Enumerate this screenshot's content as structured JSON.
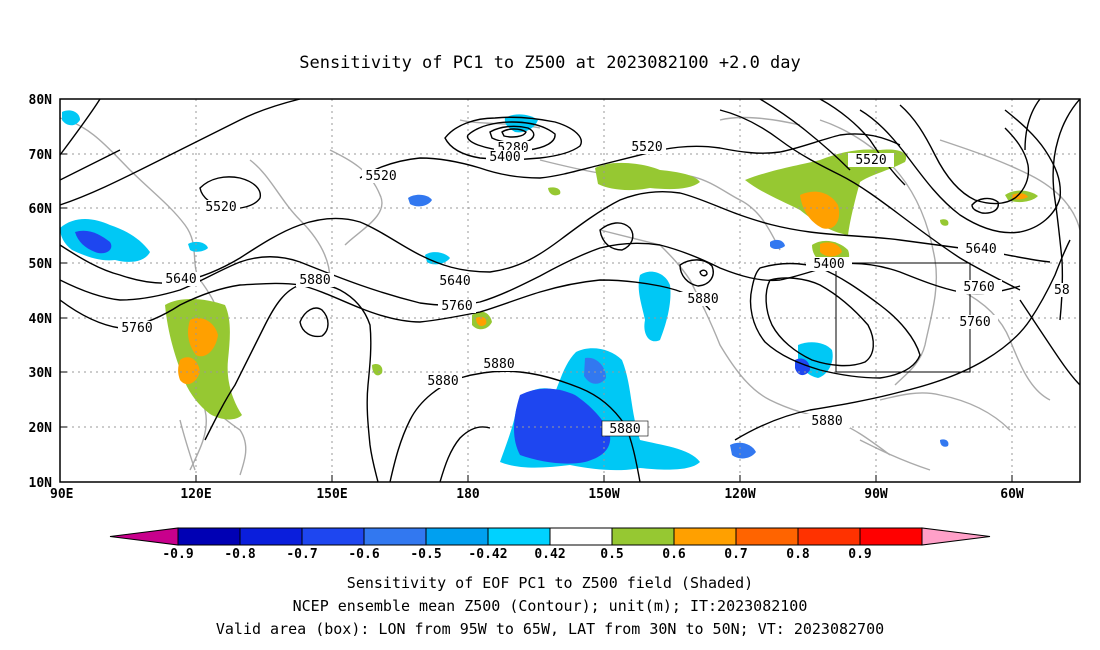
{
  "title": "Sensitivity of PC1 to Z500 at 2023082100 +2.0 day",
  "map": {
    "lat_ticks": [
      "80N",
      "70N",
      "60N",
      "50N",
      "40N",
      "30N",
      "20N",
      "10N"
    ],
    "lon_ticks": [
      "90E",
      "120E",
      "150E",
      "180",
      "150W",
      "120W",
      "90W",
      "60W"
    ],
    "grid": "dotted every 10 degrees",
    "box": {
      "lon_range": [
        "95W",
        "65W"
      ],
      "lat_range": [
        "30N",
        "50N"
      ]
    }
  },
  "contour_labels": [
    "5280",
    "5400",
    "5520",
    "5520",
    "5520",
    "5640",
    "5640",
    "5760",
    "5760",
    "5880",
    "5880",
    "5880",
    "5880",
    "5880",
    "5400",
    "5520",
    "5640",
    "5760",
    "5880",
    "5760",
    "58"
  ],
  "colorbar": {
    "labels": [
      "-0.9",
      "-0.8",
      "-0.7",
      "-0.6",
      "-0.5",
      "-0.42",
      "0.42",
      "0.5",
      "0.6",
      "0.7",
      "0.8",
      "0.9"
    ],
    "colors": [
      "#c8008c",
      "#0000b4",
      "#0a1edc",
      "#1e46f0",
      "#3278f0",
      "#00a0f0",
      "#00d2ff",
      "#ffffff",
      "#96c832",
      "#ffa000",
      "#ff6400",
      "#ff3200",
      "#ff0000",
      "#ffa0c8"
    ]
  },
  "shading_colors": {
    "neg_dark": "#1e46f0",
    "neg_mid": "#3278f0",
    "neg_light": "#00c8f5",
    "pos_green": "#96c832",
    "pos_orange": "#ffa000",
    "pos_dark_orange": "#ff6e00"
  },
  "caption": [
    "Sensitivity of EOF PC1 to Z500 field (Shaded)",
    "NCEP ensemble mean Z500 (Contour); unit(m); IT:2023082100",
    "Valid area (box): LON from 95W to 65W, LAT from 30N to 50N; VT: 2023082700"
  ]
}
